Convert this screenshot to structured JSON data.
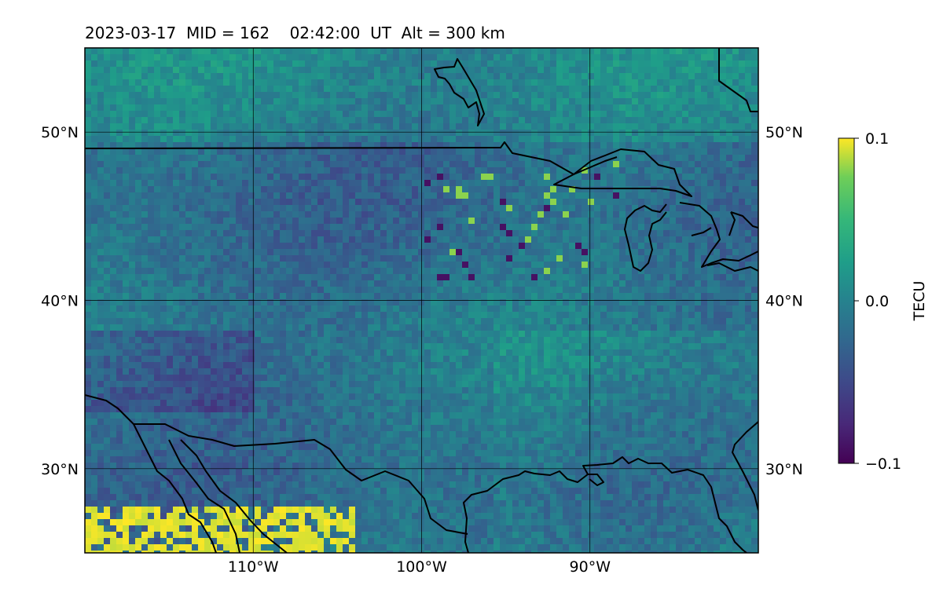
{
  "title": "2023-03-17  MID = 162    02:42:00  UT  Alt = 300 km",
  "map": {
    "extent": {
      "lon": [
        -120,
        -80
      ],
      "lat": [
        25,
        55
      ]
    },
    "lat_ticks": [
      {
        "value": 50,
        "label": "50°N"
      },
      {
        "value": 40,
        "label": "40°N"
      },
      {
        "value": 30,
        "label": "30°N"
      }
    ],
    "lon_ticks": [
      {
        "value": -110,
        "label": "110°W"
      },
      {
        "value": -100,
        "label": "100°W"
      },
      {
        "value": -90,
        "label": "90°W"
      }
    ],
    "colormap": "viridis",
    "background": "#2f6f8e"
  },
  "colorbar": {
    "label": "TECU",
    "range": [
      -0.1,
      0.1
    ],
    "ticks": [
      {
        "value": 0.1,
        "label": "0.1"
      },
      {
        "value": 0.0,
        "label": "0.0"
      },
      {
        "value": -0.1,
        "label": "−0.1"
      }
    ]
  }
}
